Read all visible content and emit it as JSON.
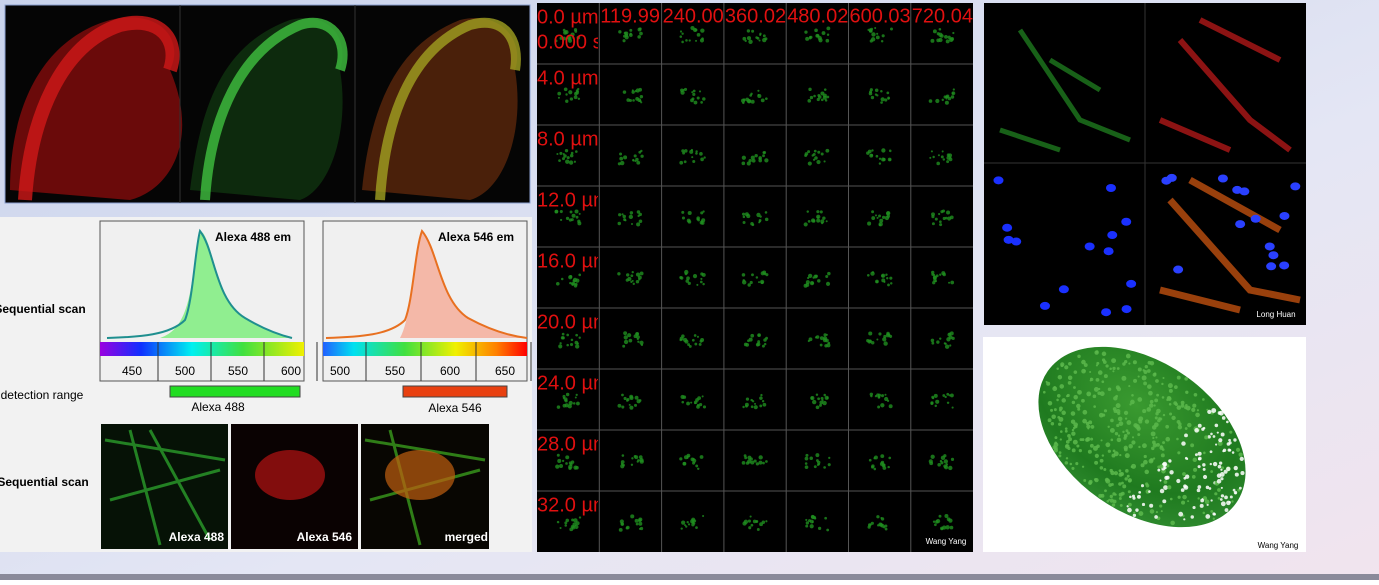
{
  "row_labels": {
    "scan_1": "Sequential scan",
    "detection": "detection range",
    "scan_2": "Sequential scan"
  },
  "spectra": [
    {
      "label": "Alexa 488  em",
      "ticks": [
        450,
        500,
        550,
        600
      ],
      "range_label": "Alexa 488"
    },
    {
      "label": "Alexa 546 em",
      "ticks": [
        500,
        550,
        600,
        650
      ],
      "range_label": "Alexa 546"
    }
  ],
  "cell_images": [
    {
      "caption": "Alexa 488"
    },
    {
      "caption": "Alexa 546"
    },
    {
      "caption": "merged"
    }
  ],
  "timelapse": {
    "depth_labels": [
      "0.0 µm",
      "4.0 µm",
      "8.0 µm",
      "12.0 µm",
      "16.0 µm",
      "20.0 µm",
      "24.0 µm",
      "28.0 µm",
      "32.0 µm"
    ],
    "time_labels": [
      "0.000 s",
      "119.99",
      "240.00",
      "360.02",
      "480.02",
      "600.03",
      "720.04"
    ],
    "credit": "Wang Yang"
  },
  "cells_panel": {
    "credit": "Long Huan"
  },
  "embryo_panel": {
    "credit": "Wang Yang"
  }
}
